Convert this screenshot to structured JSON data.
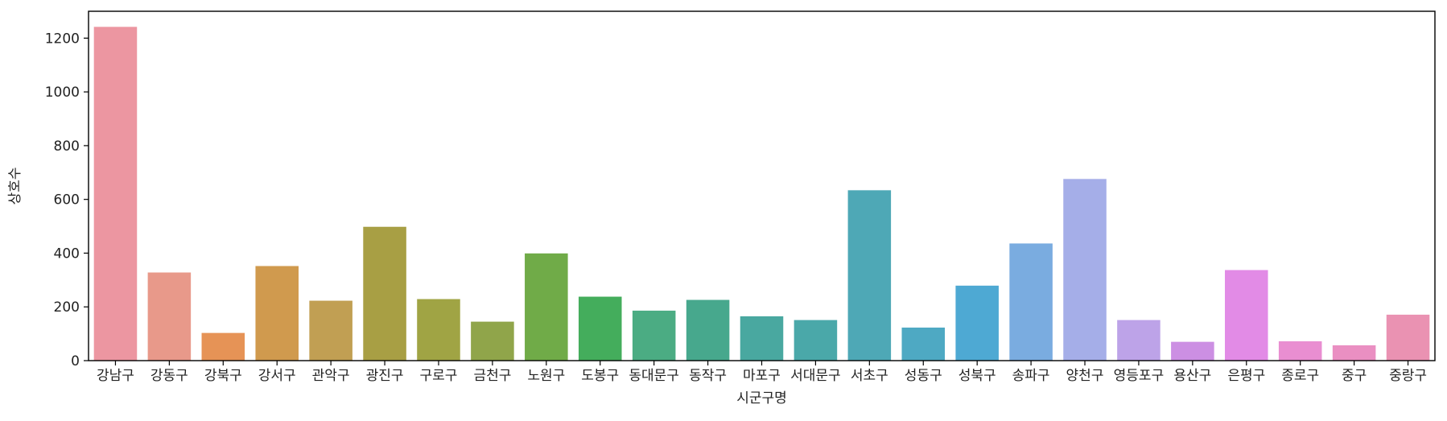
{
  "chart_data": {
    "type": "bar",
    "xlabel": "시군구명",
    "ylabel": "상호수",
    "ylim": [
      0,
      1300
    ],
    "yticks": [
      0,
      200,
      400,
      600,
      800,
      1000,
      1200
    ],
    "grid": false,
    "categories": [
      "강남구",
      "강동구",
      "강북구",
      "강서구",
      "관악구",
      "광진구",
      "구로구",
      "금천구",
      "노원구",
      "도봉구",
      "동대문구",
      "동작구",
      "마포구",
      "서대문구",
      "서초구",
      "성동구",
      "성북구",
      "송파구",
      "양천구",
      "영등포구",
      "용산구",
      "은평구",
      "종로구",
      "중구",
      "중랑구"
    ],
    "values": [
      1242,
      328,
      103,
      352,
      223,
      498,
      229,
      145,
      399,
      238,
      186,
      226,
      165,
      151,
      634,
      123,
      279,
      436,
      676,
      151,
      70,
      337,
      72,
      57,
      171
    ],
    "colors": [
      "#ec96a1",
      "#e8998a",
      "#e69356",
      "#d09a4e",
      "#c19f53",
      "#a89f44",
      "#a0a444",
      "#90a54a",
      "#70ab48",
      "#44ad5c",
      "#4bac83",
      "#47a88d",
      "#49a8a0",
      "#4aa8a9",
      "#4ea8b6",
      "#4ea9c3",
      "#4ea9d3",
      "#7aace0",
      "#a5aee8",
      "#bda3e8",
      "#cc8fe3",
      "#e28be6",
      "#e98ed1",
      "#ea8fc2",
      "#ea92b2"
    ]
  }
}
